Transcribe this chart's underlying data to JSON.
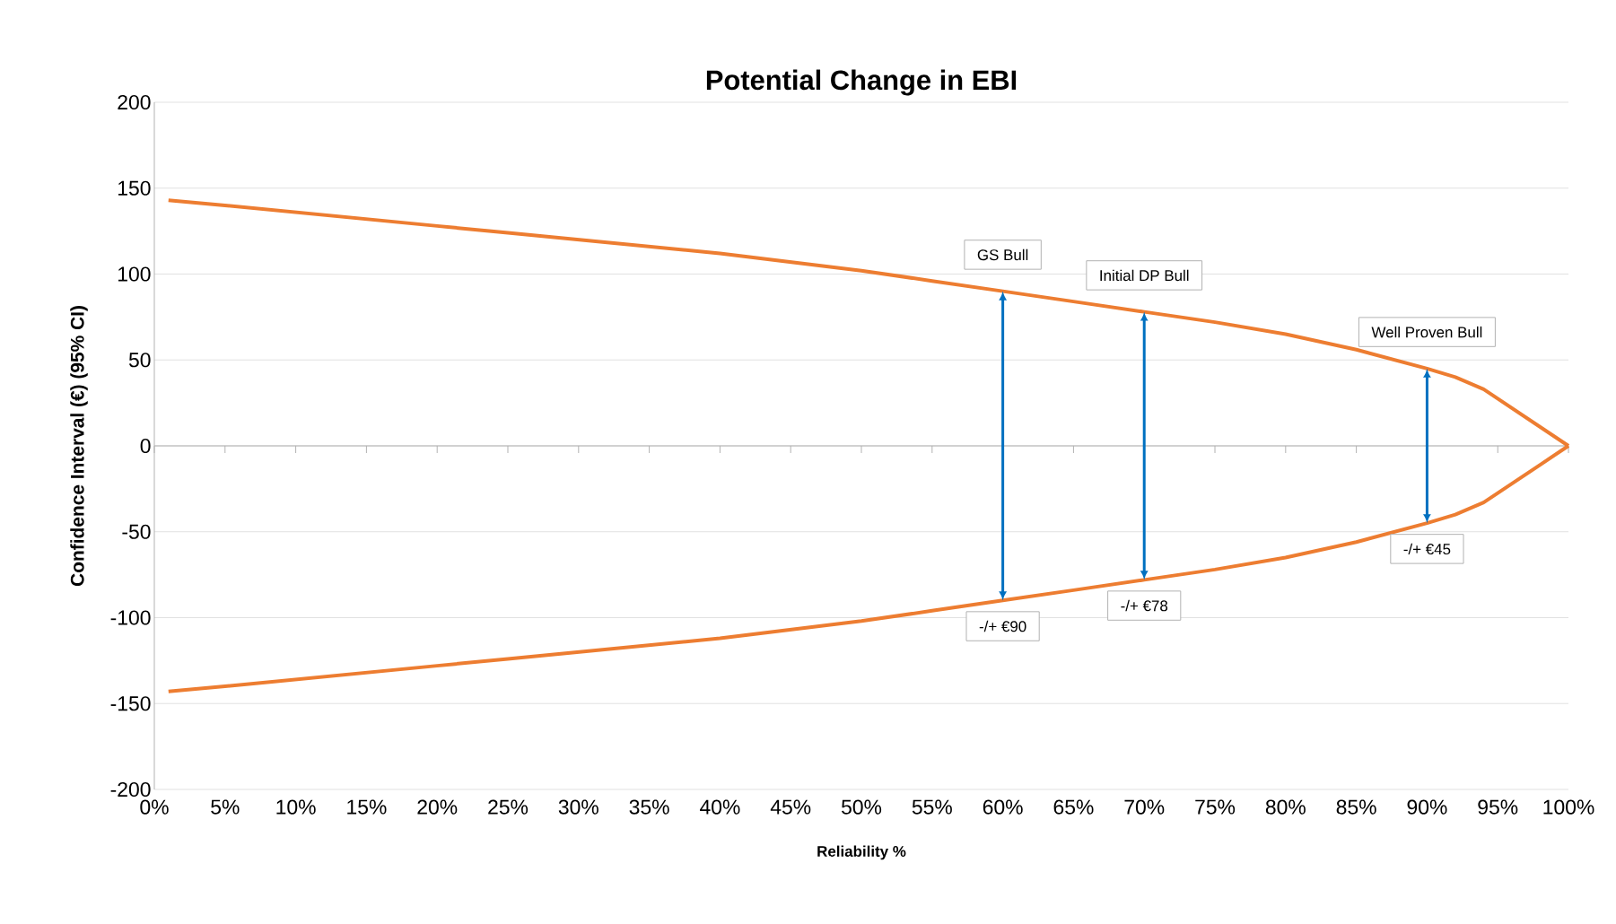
{
  "chart_data": {
    "type": "line",
    "title": "Potential Change in EBI",
    "xlabel": "Reliability %",
    "ylabel": "Confidence Interval (€) (95% CI)",
    "series": [
      {
        "color": "#ed7d31",
        "x": [
          1,
          5,
          10,
          15,
          20,
          25,
          30,
          35,
          40,
          45,
          50,
          55,
          60,
          65,
          70,
          75,
          80,
          85,
          90,
          92,
          94,
          96,
          98,
          100
        ],
        "values": [
          143,
          140,
          136,
          132,
          128,
          124,
          120,
          116,
          112,
          107,
          102,
          96,
          90,
          84,
          78,
          72,
          65,
          56,
          45,
          40,
          33,
          22,
          11,
          0
        ]
      },
      {
        "color": "#ed7d31",
        "x": [
          1,
          5,
          10,
          15,
          20,
          25,
          30,
          35,
          40,
          45,
          50,
          55,
          60,
          65,
          70,
          75,
          80,
          85,
          90,
          92,
          94,
          96,
          98,
          100
        ],
        "values": [
          -143,
          -140,
          -136,
          -132,
          -128,
          -124,
          -120,
          -116,
          -112,
          -107,
          -102,
          -96,
          -90,
          -84,
          -78,
          -72,
          -65,
          -56,
          -45,
          -40,
          -33,
          -22,
          -11,
          0
        ]
      }
    ],
    "annotations": [
      {
        "text": "GS Bull",
        "x": 60,
        "y": 90
      },
      {
        "text": "Initial DP Bull",
        "x": 70,
        "y": 78
      },
      {
        "text": "Well Proven Bull",
        "x": 90,
        "y": 45
      },
      {
        "text": "-/+ €90",
        "x": 60,
        "y": -90
      },
      {
        "text": "-/+ €78",
        "x": 70,
        "y": -78
      },
      {
        "text": "-/+ €45",
        "x": 90,
        "y": -45
      }
    ],
    "xlim": [
      0,
      100
    ],
    "xticks": [
      {
        "value": 0,
        "label": "0%"
      },
      {
        "value": 5,
        "label": "5%"
      },
      {
        "value": 10,
        "label": "10%"
      },
      {
        "value": 15,
        "label": "15%"
      },
      {
        "value": 20,
        "label": "20%"
      },
      {
        "value": 25,
        "label": "25%"
      },
      {
        "value": 30,
        "label": "30%"
      },
      {
        "value": 35,
        "label": "35%"
      },
      {
        "value": 40,
        "label": "40%"
      },
      {
        "value": 45,
        "label": "45%"
      },
      {
        "value": 50,
        "label": "50%"
      },
      {
        "value": 55,
        "label": "55%"
      },
      {
        "value": 60,
        "label": "60%"
      },
      {
        "value": 65,
        "label": "65%"
      },
      {
        "value": 70,
        "label": "70%"
      },
      {
        "value": 75,
        "label": "75%"
      },
      {
        "value": 80,
        "label": "80%"
      },
      {
        "value": 85,
        "label": "85%"
      },
      {
        "value": 90,
        "label": "90%"
      },
      {
        "value": 95,
        "label": "95%"
      },
      {
        "value": 100,
        "label": "100%"
      }
    ],
    "ylim": [
      -200,
      200
    ],
    "yticks": [
      -200,
      -150,
      -100,
      -50,
      0,
      50,
      100,
      150,
      200
    ],
    "grid": "y",
    "legend": false,
    "marker": "none",
    "line_style": "solid"
  }
}
